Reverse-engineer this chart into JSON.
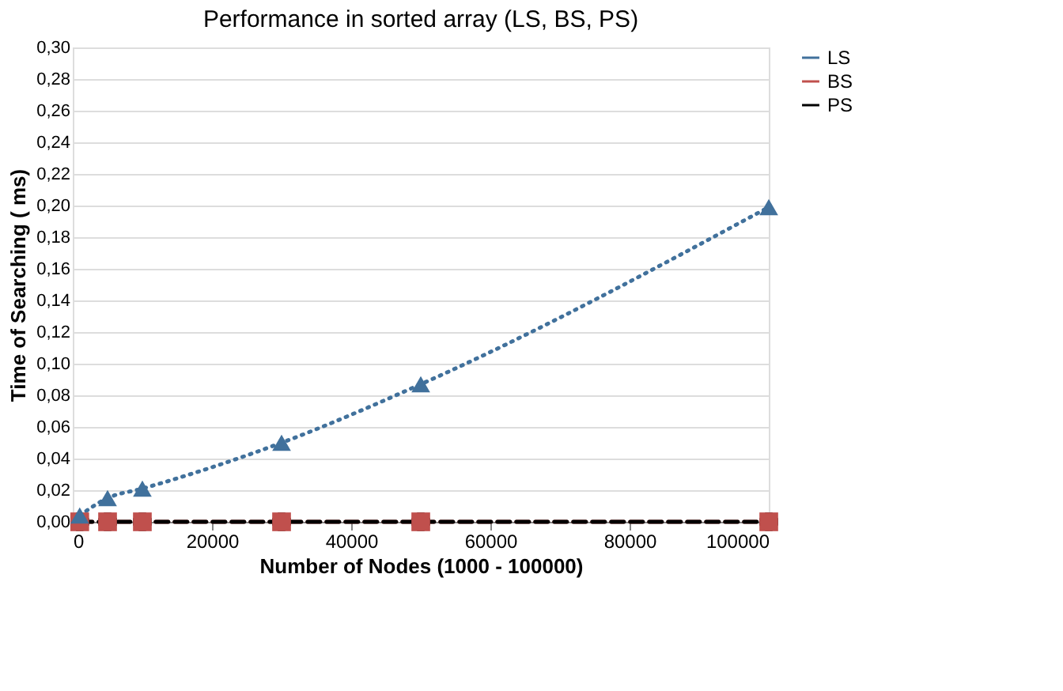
{
  "chart_data": {
    "type": "line",
    "title": "Performance in sorted array (LS, BS, PS)",
    "xlabel": "Number of Nodes (1000 - 100000)",
    "ylabel": "Time of Searching ( ms)",
    "x": [
      1000,
      5000,
      10000,
      30000,
      50000,
      100000
    ],
    "series": [
      {
        "name": "LS",
        "color": "#41719c",
        "marker": "triangle",
        "line_style": "dotted",
        "values": [
          0.004,
          0.015,
          0.021,
          0.05,
          0.087,
          0.199
        ]
      },
      {
        "name": "BS",
        "color": "#c0504d",
        "marker": "square",
        "line_style": "dashed",
        "values": [
          0,
          0,
          0,
          0,
          0,
          0
        ]
      },
      {
        "name": "PS",
        "color": "#000000",
        "marker": "cross",
        "line_style": "dashed",
        "values": [
          0,
          0,
          0,
          0,
          0,
          0
        ]
      }
    ],
    "xlim": [
      0,
      100000
    ],
    "xticks": [
      0,
      20000,
      40000,
      60000,
      80000,
      100000
    ],
    "ylim": [
      0,
      0.3
    ],
    "yticks": [
      {
        "value": 0,
        "label": "0,00"
      },
      {
        "value": 0.02,
        "label": "0,02"
      },
      {
        "value": 0.04,
        "label": "0,04"
      },
      {
        "value": 0.06,
        "label": "0,06"
      },
      {
        "value": 0.08,
        "label": "0,08"
      },
      {
        "value": 0.1,
        "label": "0,10"
      },
      {
        "value": 0.12,
        "label": "0,12"
      },
      {
        "value": 0.14,
        "label": "0,14"
      },
      {
        "value": 0.16,
        "label": "0,16"
      },
      {
        "value": 0.18,
        "label": "0,18"
      },
      {
        "value": 0.2,
        "label": "0,20"
      },
      {
        "value": 0.22,
        "label": "0,22"
      },
      {
        "value": 0.24,
        "label": "0,24"
      },
      {
        "value": 0.26,
        "label": "0,26"
      },
      {
        "value": 0.28,
        "label": "0,28"
      },
      {
        "value": 0.3,
        "label": "0,30"
      }
    ],
    "grid": "y",
    "legend": "right"
  }
}
